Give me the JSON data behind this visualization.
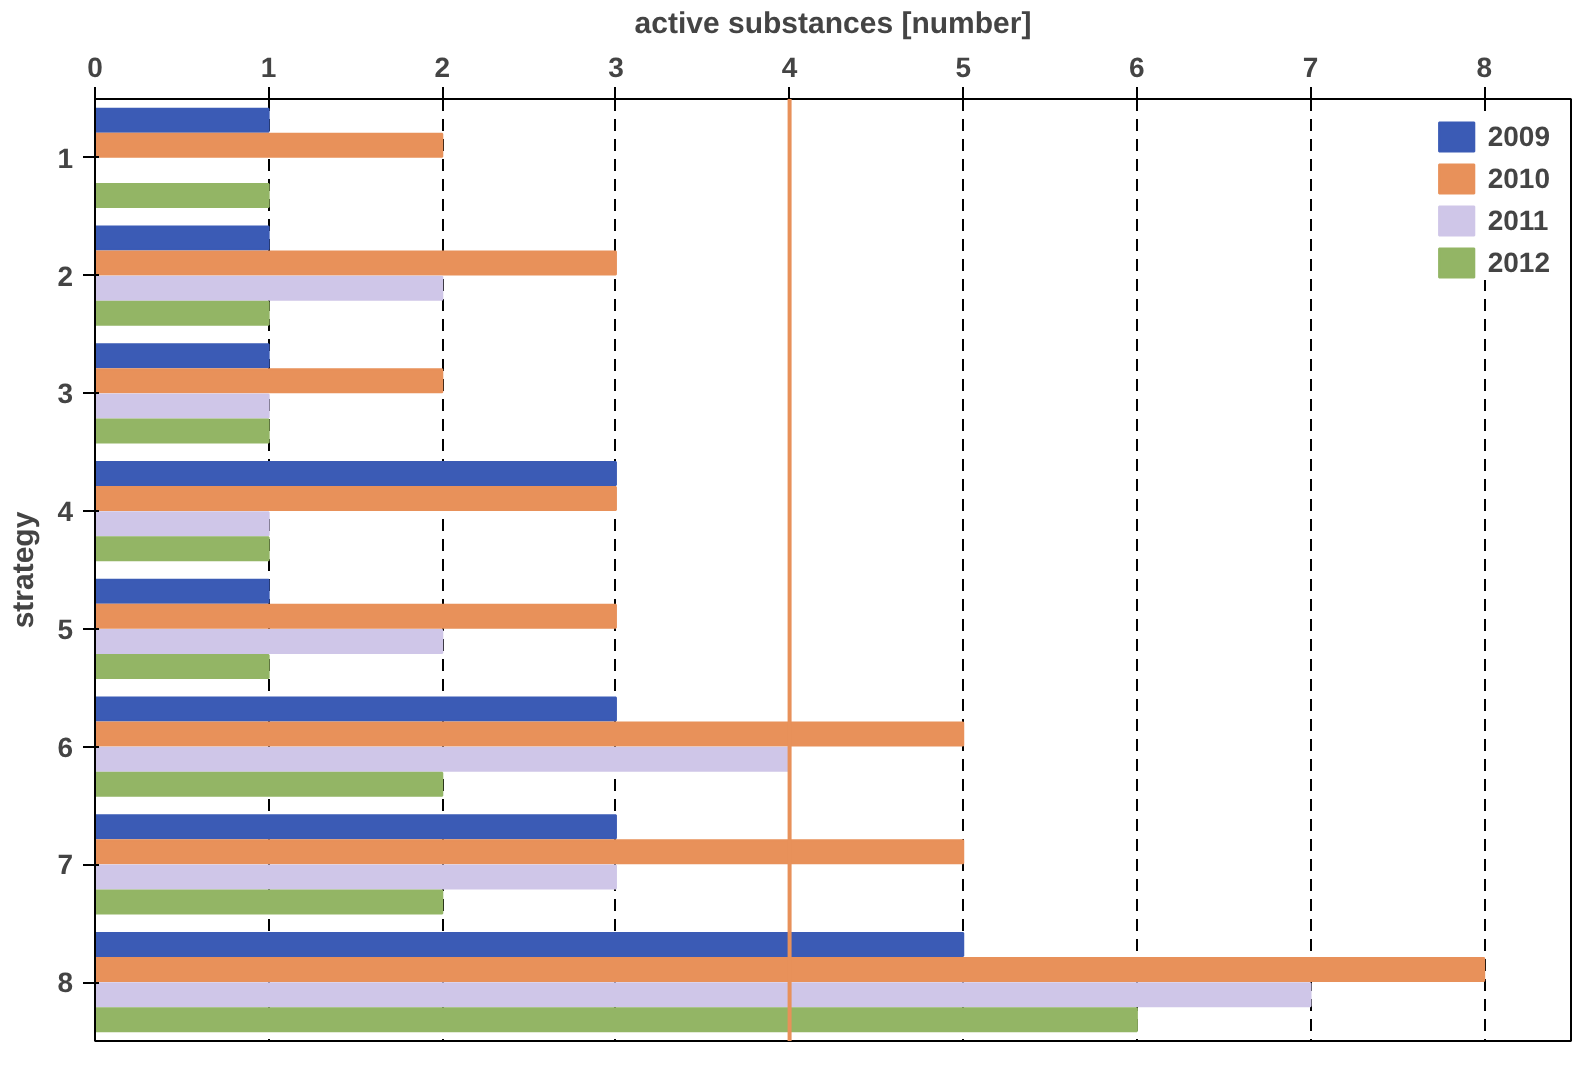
{
  "chart_data": {
    "type": "bar",
    "orientation": "horizontal",
    "xlabel": "active substances [number]",
    "ylabel": "strategy",
    "categories": [
      "1",
      "2",
      "3",
      "4",
      "5",
      "6",
      "7",
      "8"
    ],
    "series": [
      {
        "name": "2009",
        "color": "#3b5bb5",
        "values": [
          1,
          1,
          1,
          3,
          1,
          3,
          3,
          5
        ]
      },
      {
        "name": "2010",
        "color": "#e8915a",
        "values": [
          2,
          3,
          2,
          3,
          3,
          5,
          5,
          8
        ]
      },
      {
        "name": "2011",
        "color": "#cfc6e8",
        "values": [
          null,
          2,
          1,
          1,
          2,
          4,
          3,
          7
        ]
      },
      {
        "name": "2012",
        "color": "#93b565",
        "values": [
          1,
          1,
          1,
          1,
          1,
          2,
          2,
          6
        ]
      }
    ],
    "xlim": [
      0,
      8.5
    ],
    "xticks": [
      0,
      1,
      2,
      3,
      4,
      5,
      6,
      7,
      8
    ],
    "ref_lines": [
      {
        "axis": "x",
        "value": 4,
        "color": "#e8915a"
      }
    ],
    "grid": "x",
    "legend": "top right"
  }
}
